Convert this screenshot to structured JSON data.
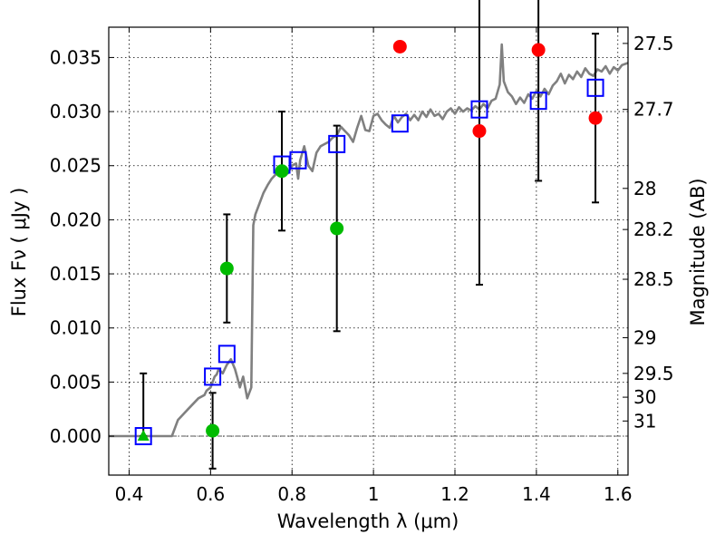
{
  "chart_data": {
    "type": "scatter",
    "xlabel": "Wavelength  λ (μm)",
    "ylabel": "Flux  Fν  ( μJy )",
    "ylabel_right": "Magnitude (AB)",
    "xlim": [
      0.35,
      1.625
    ],
    "ylim": [
      -0.0036,
      0.0378
    ],
    "grid": true,
    "x_ticks": [
      0.4,
      0.6,
      0.8,
      1.0,
      1.2,
      1.4,
      1.6
    ],
    "x_tick_labels": [
      "0.4",
      "0.6",
      "0.8",
      "1",
      "1.2",
      "1.4",
      "1.6"
    ],
    "y_ticks": [
      0.0,
      0.005,
      0.01,
      0.015,
      0.02,
      0.025,
      0.03,
      0.035
    ],
    "y_tick_labels": [
      "0.000",
      "0.005",
      "0.010",
      "0.015",
      "0.020",
      "0.025",
      "0.030",
      "0.035"
    ],
    "mag_ticks": [
      {
        "label": "27.5",
        "flux": 0.0363
      },
      {
        "label": "27.7",
        "flux": 0.0302
      },
      {
        "label": "28",
        "flux": 0.0229
      },
      {
        "label": "28.2",
        "flux": 0.0191
      },
      {
        "label": "28.5",
        "flux": 0.0145
      },
      {
        "label": "29",
        "flux": 0.0091
      },
      {
        "label": "29.5",
        "flux": 0.0058
      },
      {
        "label": "30",
        "flux": 0.0036
      },
      {
        "label": "31",
        "flux": 0.0014
      }
    ],
    "template_sed": {
      "color": "#808080",
      "x": [
        0.35,
        0.505,
        0.52,
        0.545,
        0.57,
        0.585,
        0.59,
        0.6,
        0.61,
        0.615,
        0.62,
        0.63,
        0.64,
        0.65,
        0.66,
        0.665,
        0.672,
        0.68,
        0.69,
        0.7,
        0.705,
        0.71,
        0.72,
        0.73,
        0.74,
        0.75,
        0.76,
        0.77,
        0.78,
        0.79,
        0.8,
        0.81,
        0.815,
        0.82,
        0.83,
        0.84,
        0.85,
        0.86,
        0.87,
        0.88,
        0.89,
        0.9,
        0.91,
        0.92,
        0.93,
        0.94,
        0.95,
        0.96,
        0.97,
        0.98,
        0.99,
        1.0,
        1.01,
        1.02,
        1.03,
        1.04,
        1.05,
        1.06,
        1.07,
        1.08,
        1.09,
        1.1,
        1.11,
        1.12,
        1.13,
        1.14,
        1.15,
        1.16,
        1.17,
        1.18,
        1.19,
        1.2,
        1.21,
        1.22,
        1.23,
        1.24,
        1.25,
        1.26,
        1.27,
        1.28,
        1.29,
        1.3,
        1.31,
        1.315,
        1.32,
        1.33,
        1.34,
        1.35,
        1.36,
        1.37,
        1.38,
        1.39,
        1.4,
        1.41,
        1.42,
        1.43,
        1.44,
        1.45,
        1.46,
        1.47,
        1.48,
        1.49,
        1.5,
        1.51,
        1.52,
        1.53,
        1.54,
        1.55,
        1.56,
        1.57,
        1.58,
        1.59,
        1.6,
        1.61,
        1.625
      ],
      "y": [
        0.0,
        0.0,
        0.0015,
        0.0025,
        0.0035,
        0.0038,
        0.0042,
        0.0045,
        0.0055,
        0.0057,
        0.0062,
        0.0058,
        0.0066,
        0.0071,
        0.0062,
        0.0055,
        0.0045,
        0.0055,
        0.0035,
        0.0045,
        0.0195,
        0.0205,
        0.0215,
        0.0225,
        0.0232,
        0.0238,
        0.0242,
        0.0245,
        0.0248,
        0.0243,
        0.025,
        0.0252,
        0.0238,
        0.0255,
        0.0268,
        0.025,
        0.0245,
        0.0262,
        0.0268,
        0.027,
        0.0272,
        0.0276,
        0.0278,
        0.0286,
        0.0282,
        0.0278,
        0.0272,
        0.0285,
        0.0296,
        0.0283,
        0.0282,
        0.0296,
        0.0298,
        0.0292,
        0.0288,
        0.0285,
        0.0296,
        0.029,
        0.0295,
        0.0298,
        0.0292,
        0.0297,
        0.0292,
        0.03,
        0.0295,
        0.0302,
        0.0296,
        0.0298,
        0.0293,
        0.03,
        0.0303,
        0.0298,
        0.0304,
        0.03,
        0.0303,
        0.0301,
        0.0305,
        0.0302,
        0.0307,
        0.0303,
        0.031,
        0.0312,
        0.0325,
        0.0362,
        0.0328,
        0.0318,
        0.0314,
        0.0307,
        0.0313,
        0.0308,
        0.0316,
        0.0312,
        0.0319,
        0.0314,
        0.0321,
        0.0316,
        0.0324,
        0.0328,
        0.0335,
        0.0326,
        0.0334,
        0.033,
        0.0337,
        0.0332,
        0.034,
        0.0335,
        0.0333,
        0.0339,
        0.0337,
        0.0342,
        0.0335,
        0.0341,
        0.0338,
        0.0343,
        0.0345
      ]
    },
    "series": [
      {
        "marker": "square",
        "color": "#0000ff",
        "x": [
          0.435,
          0.605,
          0.64,
          0.775,
          0.815,
          0.91,
          1.065,
          1.26,
          1.405,
          1.545
        ],
        "y": [
          0.0,
          0.0055,
          0.0076,
          0.0251,
          0.0255,
          0.027,
          0.0289,
          0.0302,
          0.031,
          0.0322
        ]
      },
      {
        "marker": "circle",
        "color": "#00bb00",
        "x": [
          0.605,
          0.64,
          0.775,
          0.91
        ],
        "y": [
          0.0005,
          0.0155,
          0.0245,
          0.0192
        ],
        "yerr": [
          0.0035,
          0.005,
          0.0055,
          0.0095
        ]
      },
      {
        "marker": "triangle",
        "color": "#00bb00",
        "x": [
          0.435
        ],
        "y": [
          0.0
        ],
        "yerr_upper": [
          0.0058
        ]
      },
      {
        "marker": "circle",
        "color": "#ff0000",
        "x": [
          1.065,
          1.26,
          1.405,
          1.545
        ],
        "y": [
          0.036,
          0.0282,
          0.0357,
          0.0294
        ],
        "yerr": [
          0.0,
          0.0142,
          0.0121,
          0.0078
        ]
      }
    ],
    "dotted_hline_y": 0.0
  }
}
